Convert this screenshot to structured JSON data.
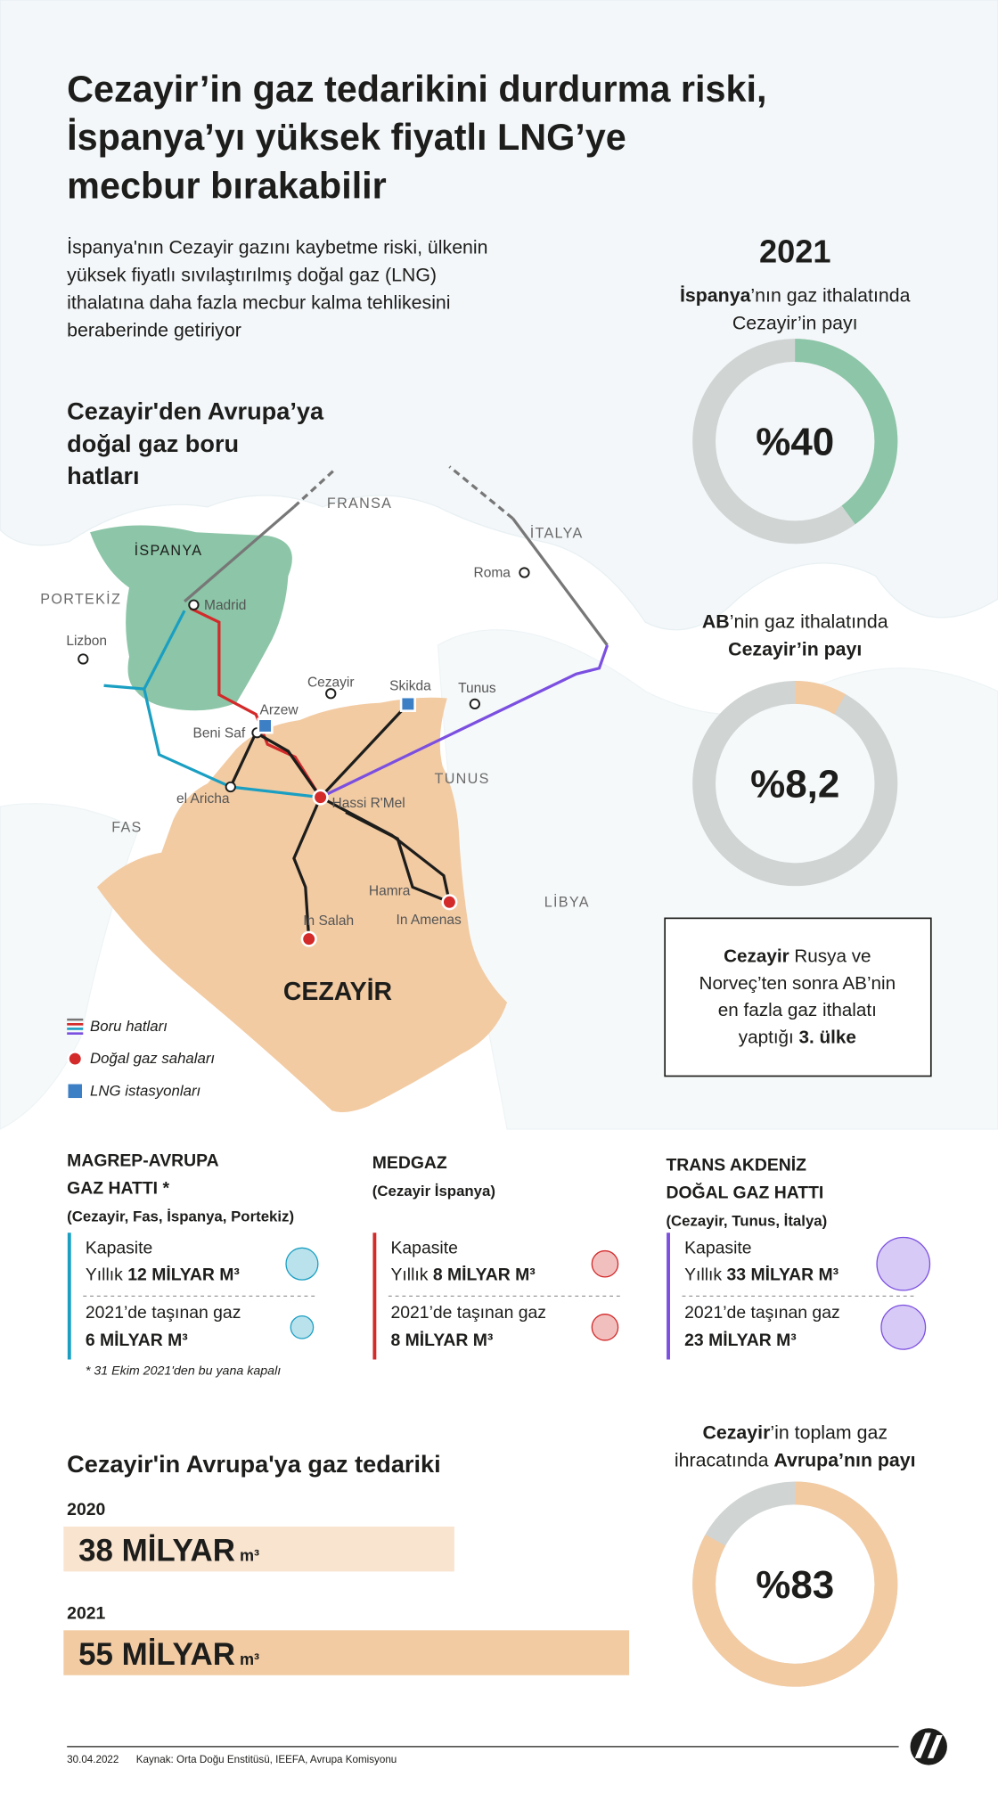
{
  "title": [
    "Cezayir’in gaz tedarikini durdurma riski,",
    "İspanya’yı yüksek fiyatlı LNG’ye",
    "mecbur bırakabilir"
  ],
  "subtitle": [
    "İspanya'nın Cezayir gazını kaybetme riski, ülkenin",
    "yüksek fiyatlı sıvılaştırılmış doğal gaz (LNG)",
    "ithalatına daha fazla mecbur kalma tehlikesini",
    "beraberinde getiriyor"
  ],
  "map": {
    "heading": [
      "Cezayir'den Avrupa’ya",
      "doğal gaz boru",
      "hatları"
    ],
    "labels": [
      "FRANSA",
      "İSPANYA",
      "PORTEKİZ",
      "Lizbon",
      "Madrid",
      "İTALYA",
      "Roma",
      "Cezayir",
      "Skikda",
      "Tunus",
      "Arzew",
      "Beni Saf",
      "el Aricha",
      "TUNUS",
      "FAS",
      "Hassi R'Mel",
      "Hamra",
      "In Salah",
      "In Amenas",
      "LİBYA",
      "CEZAYİR"
    ],
    "legend": [
      "Boru hatları",
      "Doğal gaz sahaları",
      "LNG istasyonları"
    ]
  },
  "year": "2021",
  "donuts": [
    {
      "lines": [
        [
          "İspanya",
          "’nın gaz ithalatında"
        ],
        [
          "Cezayir’in payı"
        ]
      ],
      "label": "%40",
      "value": 40,
      "color": "#8cc5a7"
    },
    {
      "lines": [
        [
          "AB",
          "’nin gaz ithalatında"
        ],
        [
          "Cezayir’in payı"
        ]
      ],
      "label": "%8,2",
      "value": 8.2,
      "color": "#f2cba3"
    },
    {
      "lines": [
        [
          "Cezayir",
          "’in toplam gaz"
        ],
        [
          "ihracatında ",
          "Avrupa’nın payı"
        ]
      ],
      "label": "%83",
      "value": 83,
      "color": "#f2cba3"
    }
  ],
  "box": [
    [
      "Cezayir",
      " Rusya ve"
    ],
    [
      "Norveç’ten sonra AB’nin"
    ],
    [
      "en fazla gaz ithalatı"
    ],
    [
      "yaptığı ",
      "3. ülke"
    ]
  ],
  "pipelines": [
    {
      "name": [
        "MAGREP-AVRUPA",
        "GAZ HATTI *"
      ],
      "sub": "(Cezayir, Fas, İspanya, Portekiz)",
      "color": "#1a9fc2",
      "rows": [
        {
          "label": "Kapasite",
          "prefix": "Yıllık ",
          "value": 12,
          "unit": " MİLYAR M³"
        },
        {
          "label": "2021’de taşınan gaz",
          "value": 6,
          "unit": " MİLYAR M³"
        }
      ],
      "note": "* 31 Ekim 2021'den bu yana kapalı"
    },
    {
      "name": [
        "MEDGAZ"
      ],
      "sub": "(Cezayir İspanya)",
      "color": "#d32a2a",
      "rows": [
        {
          "label": "Kapasite",
          "prefix": "Yıllık ",
          "value": 8,
          "unit": " MİLYAR M³"
        },
        {
          "label": "2021’de taşınan gaz",
          "value": 8,
          "unit": " MİLYAR M³"
        }
      ]
    },
    {
      "name": [
        "TRANS AKDENİZ",
        "DOĞAL GAZ HATTI"
      ],
      "sub": "(Cezayir, Tunus, İtalya)",
      "color": "#7b4fe0",
      "rows": [
        {
          "label": "Kapasite",
          "prefix": "Yıllık ",
          "value": 33,
          "unit": " MİLYAR M³"
        },
        {
          "label": "2021’de taşınan gaz",
          "value": 23,
          "unit": " MİLYAR M³"
        }
      ]
    }
  ],
  "supply": {
    "title": "Cezayir'in Avrupa'ya gaz tedariki",
    "unit": " MİLYAR",
    "unit_small": " m³",
    "bars": [
      {
        "year": "2020",
        "value": 38,
        "color": "#f9e4d0"
      },
      {
        "year": "2021",
        "value": 55,
        "color": "#f2cba3"
      }
    ]
  },
  "footer": {
    "date": "30.04.2022",
    "source": "Kaynak: Orta Doğu Enstitüsü, IEEFA, Avrupa Komisyonu"
  }
}
